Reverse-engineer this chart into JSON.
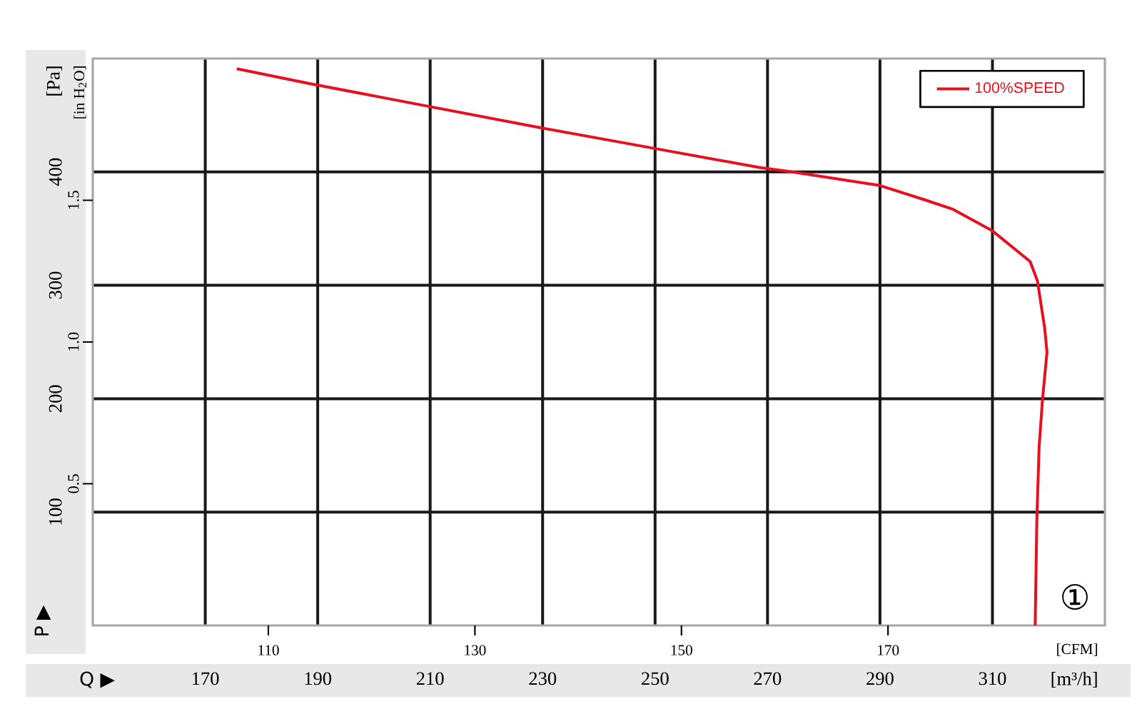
{
  "chart_data": {
    "type": "line",
    "xlabel": "[m³/h]",
    "ylabel": "[Pa]",
    "x2label": "[CFM]",
    "y2label": "[in H$_{2}$O]",
    "xlim": [
      150,
      330
    ],
    "xticks": [
      170,
      190,
      210,
      230,
      250,
      270,
      290,
      310
    ],
    "ylim": [
      0,
      500
    ],
    "yticks": [
      100,
      200,
      300,
      400
    ],
    "x2lim": [
      93,
      191
    ],
    "x2ticks": [
      110,
      130,
      150,
      170
    ],
    "y2lim": [
      0,
      2.0
    ],
    "y2ticks": [
      {
        "value": 0.5,
        "label": "0.5"
      },
      {
        "value": 1.0,
        "label": "1.0"
      },
      {
        "value": 1.5,
        "label": "1.5"
      }
    ],
    "grid": true,
    "legend": "top right",
    "line_style": "solid",
    "marker": "none",
    "annotations": [
      "P ▶",
      "Q ▶",
      "①"
    ],
    "series": [
      {
        "name": "100%SPEED",
        "color": "#e8101e",
        "x": [
          175.6,
          188.5,
          208.5,
          228.5,
          248.5,
          268.5,
          274.4,
          290,
          298.2,
          303,
          310,
          316.7,
          318,
          319.3,
          319.7,
          318.9,
          318.3,
          317.9,
          317.6
        ],
        "values": [
          491,
          478,
          459,
          440,
          422,
          404,
          400,
          388,
          375,
          367,
          348,
          321,
          304,
          262,
          241,
          199,
          157,
          94,
          0
        ]
      }
    ]
  }
}
